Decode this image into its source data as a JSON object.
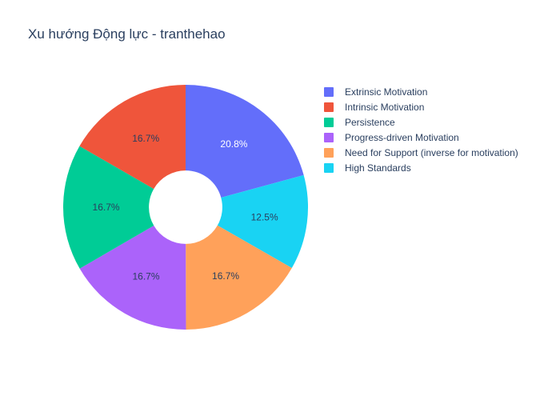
{
  "title": "Xu hướng Động lực - tranthehao",
  "chart_data": {
    "type": "pie",
    "title": "Xu hướng Động lực - tranthehao",
    "hole": 0.3,
    "direction": "clockwise",
    "legend_position": "top-right",
    "slices": [
      {
        "label": "Extrinsic Motivation",
        "percent": 20.8,
        "value_label": "20.8%",
        "color": "#636efa",
        "text_color": "#ffffff"
      },
      {
        "label": "High Standards",
        "percent": 12.5,
        "value_label": "12.5%",
        "color": "#19d3f3",
        "text_color": "#2a3f5f"
      },
      {
        "label": "Need for Support (inverse for motivation)",
        "percent": 16.7,
        "value_label": "16.7%",
        "color": "#ffa15a",
        "text_color": "#2a3f5f"
      },
      {
        "label": "Progress-driven Motivation",
        "percent": 16.7,
        "value_label": "16.7%",
        "color": "#ab63fa",
        "text_color": "#2a3f5f"
      },
      {
        "label": "Persistence",
        "percent": 16.7,
        "value_label": "16.7%",
        "color": "#00cc96",
        "text_color": "#2a3f5f"
      },
      {
        "label": "Intrinsic Motivation",
        "percent": 16.7,
        "value_label": "16.7%",
        "color": "#ef553b",
        "text_color": "#2a3f5f"
      }
    ],
    "legend": [
      {
        "label": "Extrinsic Motivation",
        "color": "#636efa"
      },
      {
        "label": "Intrinsic Motivation",
        "color": "#ef553b"
      },
      {
        "label": "Persistence",
        "color": "#00cc96"
      },
      {
        "label": "Progress-driven Motivation",
        "color": "#ab63fa"
      },
      {
        "label": "Need for Support (inverse for motivation)",
        "color": "#ffa15a"
      },
      {
        "label": "High Standards",
        "color": "#19d3f3"
      }
    ]
  }
}
